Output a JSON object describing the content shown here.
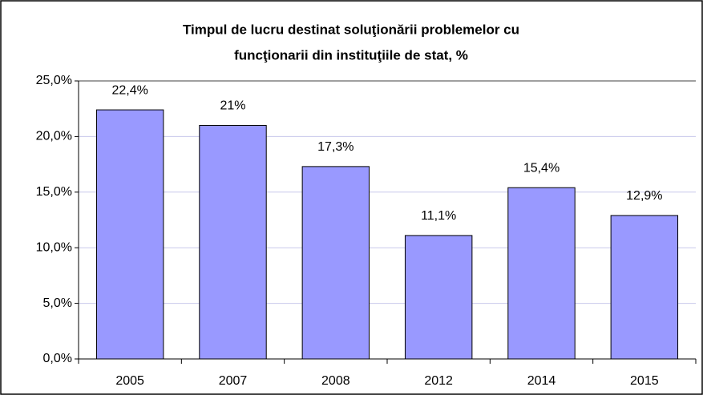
{
  "chart_data": {
    "type": "bar",
    "title": [
      "Timpul de lucru destinat soluţionării problemelor cu",
      "funcţionarii din instituţiile de stat, %"
    ],
    "categories": [
      "2005",
      "2007",
      "2008",
      "2012",
      "2014",
      "2015"
    ],
    "values": [
      22.4,
      21,
      17.3,
      11.1,
      15.4,
      12.9
    ],
    "value_labels": [
      "22,4%",
      "21%",
      "17,3%",
      "11,1%",
      "15,4%",
      "12,9%"
    ],
    "color": "#9999ff",
    "ylim": [
      0,
      25
    ],
    "yticks": [
      {
        "value": 0,
        "label": "0,0%"
      },
      {
        "value": 5,
        "label": "5,0%"
      },
      {
        "value": 10,
        "label": "10,0%"
      },
      {
        "value": 15,
        "label": "15,0%"
      },
      {
        "value": 20,
        "label": "20,0%"
      },
      {
        "value": 25,
        "label": "25,0%"
      }
    ],
    "grid": true
  }
}
